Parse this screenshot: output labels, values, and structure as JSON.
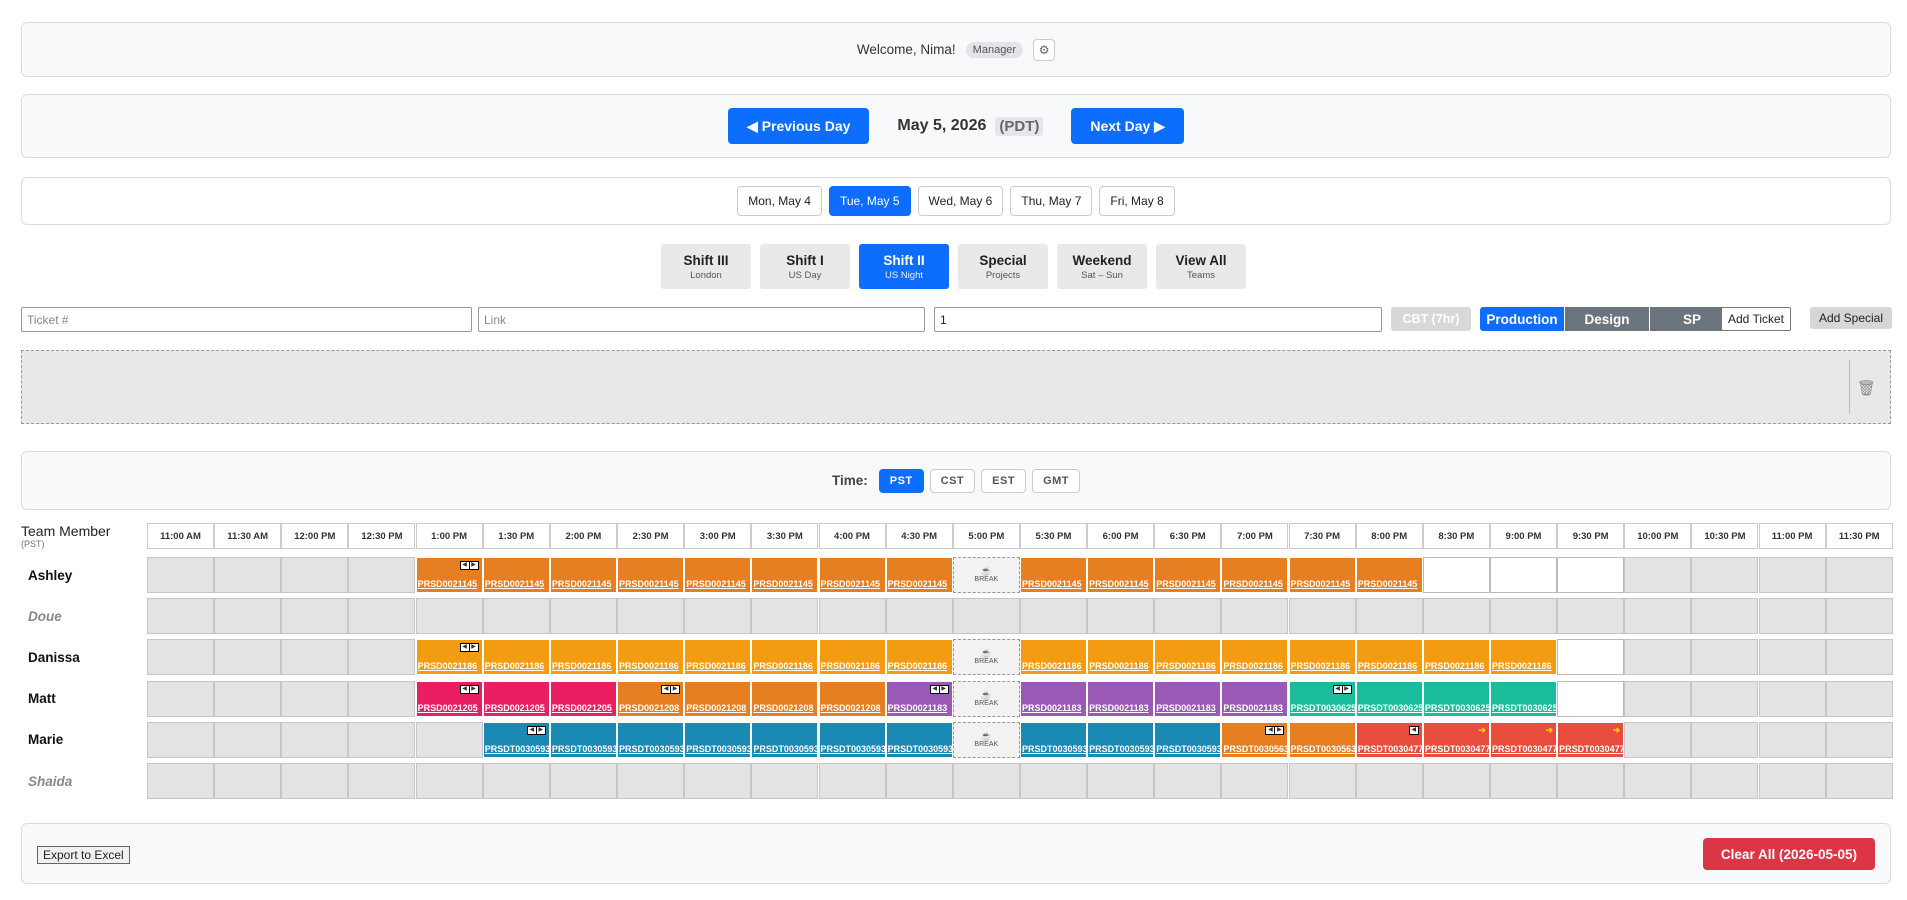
{
  "header": {
    "welcome": "Welcome, Nima!",
    "role": "Manager",
    "settings_icon": "gear-icon"
  },
  "nav": {
    "prev_label": "◀ Previous Day",
    "date": "May 5, 2026",
    "tz": "(PDT)",
    "next_label": "Next Day ▶"
  },
  "days": [
    {
      "label": "Mon, May 4",
      "active": false
    },
    {
      "label": "Tue, May 5",
      "active": true
    },
    {
      "label": "Wed, May 6",
      "active": false
    },
    {
      "label": "Thu, May 7",
      "active": false
    },
    {
      "label": "Fri, May 8",
      "active": false
    }
  ],
  "shifts": [
    {
      "title": "Shift III",
      "sub": "London",
      "active": false
    },
    {
      "title": "Shift I",
      "sub": "US Day",
      "active": false
    },
    {
      "title": "Shift II",
      "sub": "US Night",
      "active": true
    },
    {
      "title": "Special",
      "sub": "Projects",
      "active": false
    },
    {
      "title": "Weekend",
      "sub": "Sat – Sun",
      "active": false
    },
    {
      "title": "View All",
      "sub": "Teams",
      "active": false
    }
  ],
  "ticket_form": {
    "ticket_placeholder": "Ticket #",
    "link_placeholder": "Link",
    "hours_value": "1",
    "cbt_label": "CBT (7hr)",
    "categories": [
      {
        "label": "Production",
        "active": true
      },
      {
        "label": "Design",
        "active": false
      },
      {
        "label": "SP",
        "active": false
      }
    ],
    "add_ticket_label": "Add Ticket",
    "add_special_label": "Add Special"
  },
  "dropzone": {
    "trash_icon": "trash-icon"
  },
  "time": {
    "label": "Time:",
    "zones": [
      {
        "label": "PST",
        "active": true
      },
      {
        "label": "CST",
        "active": false
      },
      {
        "label": "EST",
        "active": false
      },
      {
        "label": "GMT",
        "active": false
      }
    ]
  },
  "grid": {
    "member_header": "Team Member",
    "member_tz": "(PST)",
    "time_slots": [
      "11:00 AM",
      "11:30 AM",
      "12:00 PM",
      "12:30 PM",
      "1:00 PM",
      "1:30 PM",
      "2:00 PM",
      "2:30 PM",
      "3:00 PM",
      "3:30 PM",
      "4:00 PM",
      "4:30 PM",
      "5:00 PM",
      "5:30 PM",
      "6:00 PM",
      "6:30 PM",
      "7:00 PM",
      "7:30 PM",
      "8:00 PM",
      "8:30 PM",
      "9:00 PM",
      "9:30 PM",
      "10:00 PM",
      "10:30 PM",
      "11:00 PM",
      "11:30 PM"
    ],
    "break_label": "BREAK",
    "ticket_colors": {
      "orange": "#e67e22",
      "amber": "#f39c12",
      "pink": "#e91e63",
      "purple": "#9b59b6",
      "teal": "#1abc9c",
      "blue": "#1a8ab4",
      "red": "#e74c3c"
    },
    "members": [
      {
        "name": "Ashley",
        "active": true,
        "cells": [
          {
            "t": "off"
          },
          {
            "t": "off"
          },
          {
            "t": "off"
          },
          {
            "t": "off"
          },
          {
            "t": "tk",
            "id": "PRSD0021145",
            "c": "orange",
            "ctrl": "lr"
          },
          {
            "t": "tk",
            "id": "PRSD0021145",
            "c": "orange"
          },
          {
            "t": "tk",
            "id": "PRSD0021145",
            "c": "orange"
          },
          {
            "t": "tk",
            "id": "PRSD0021145",
            "c": "orange"
          },
          {
            "t": "tk",
            "id": "PRSD0021145",
            "c": "orange"
          },
          {
            "t": "tk",
            "id": "PRSD0021145",
            "c": "orange"
          },
          {
            "t": "tk",
            "id": "PRSD0021145",
            "c": "orange"
          },
          {
            "t": "tk",
            "id": "PRSD0021145",
            "c": "orange"
          },
          {
            "t": "brk"
          },
          {
            "t": "tk",
            "id": "PRSD0021145",
            "c": "orange"
          },
          {
            "t": "tk",
            "id": "PRSD0021145",
            "c": "orange"
          },
          {
            "t": "tk",
            "id": "PRSD0021145",
            "c": "orange"
          },
          {
            "t": "tk",
            "id": "PRSD0021145",
            "c": "orange"
          },
          {
            "t": "tk",
            "id": "PRSD0021145",
            "c": "orange"
          },
          {
            "t": "tk",
            "id": "PRSD0021145",
            "c": "orange"
          },
          {
            "t": "empty"
          },
          {
            "t": "empty"
          },
          {
            "t": "empty"
          },
          {
            "t": "off"
          },
          {
            "t": "off"
          },
          {
            "t": "off"
          },
          {
            "t": "off"
          }
        ]
      },
      {
        "name": "Doue",
        "active": false,
        "cells": [
          {
            "t": "off"
          },
          {
            "t": "off"
          },
          {
            "t": "off"
          },
          {
            "t": "off"
          },
          {
            "t": "off"
          },
          {
            "t": "off"
          },
          {
            "t": "off"
          },
          {
            "t": "off"
          },
          {
            "t": "off"
          },
          {
            "t": "off"
          },
          {
            "t": "off"
          },
          {
            "t": "off"
          },
          {
            "t": "off"
          },
          {
            "t": "off"
          },
          {
            "t": "off"
          },
          {
            "t": "off"
          },
          {
            "t": "off"
          },
          {
            "t": "off"
          },
          {
            "t": "off"
          },
          {
            "t": "off"
          },
          {
            "t": "off"
          },
          {
            "t": "off"
          },
          {
            "t": "off"
          },
          {
            "t": "off"
          },
          {
            "t": "off"
          },
          {
            "t": "off"
          }
        ]
      },
      {
        "name": "Danissa",
        "active": true,
        "cells": [
          {
            "t": "off"
          },
          {
            "t": "off"
          },
          {
            "t": "off"
          },
          {
            "t": "off"
          },
          {
            "t": "tk",
            "id": "PRSD0021186",
            "c": "amber",
            "ctrl": "lr"
          },
          {
            "t": "tk",
            "id": "PRSD0021186",
            "c": "amber"
          },
          {
            "t": "tk",
            "id": "PRSD0021186",
            "c": "amber"
          },
          {
            "t": "tk",
            "id": "PRSD0021186",
            "c": "amber"
          },
          {
            "t": "tk",
            "id": "PRSD0021186",
            "c": "amber"
          },
          {
            "t": "tk",
            "id": "PRSD0021186",
            "c": "amber"
          },
          {
            "t": "tk",
            "id": "PRSD0021186",
            "c": "amber"
          },
          {
            "t": "tk",
            "id": "PRSD0021186",
            "c": "amber"
          },
          {
            "t": "brk"
          },
          {
            "t": "tk",
            "id": "PRSD0021186",
            "c": "amber"
          },
          {
            "t": "tk",
            "id": "PRSD0021186",
            "c": "amber"
          },
          {
            "t": "tk",
            "id": "PRSD0021186",
            "c": "amber"
          },
          {
            "t": "tk",
            "id": "PRSD0021186",
            "c": "amber"
          },
          {
            "t": "tk",
            "id": "PRSD0021186",
            "c": "amber"
          },
          {
            "t": "tk",
            "id": "PRSD0021186",
            "c": "amber"
          },
          {
            "t": "tk",
            "id": "PRSD0021186",
            "c": "amber"
          },
          {
            "t": "tk",
            "id": "PRSD0021186",
            "c": "amber"
          },
          {
            "t": "empty"
          },
          {
            "t": "off"
          },
          {
            "t": "off"
          },
          {
            "t": "off"
          },
          {
            "t": "off"
          }
        ]
      },
      {
        "name": "Matt",
        "active": true,
        "cells": [
          {
            "t": "off"
          },
          {
            "t": "off"
          },
          {
            "t": "off"
          },
          {
            "t": "off"
          },
          {
            "t": "tk",
            "id": "PRSD0021205",
            "c": "pink",
            "ctrl": "lr"
          },
          {
            "t": "tk",
            "id": "PRSD0021205",
            "c": "pink"
          },
          {
            "t": "tk",
            "id": "PRSD0021205",
            "c": "pink"
          },
          {
            "t": "tk",
            "id": "PRSD0021208",
            "c": "orange",
            "ctrl": "lr"
          },
          {
            "t": "tk",
            "id": "PRSD0021208",
            "c": "orange"
          },
          {
            "t": "tk",
            "id": "PRSD0021208",
            "c": "orange"
          },
          {
            "t": "tk",
            "id": "PRSD0021208",
            "c": "orange"
          },
          {
            "t": "tk",
            "id": "PRSD0021183",
            "c": "purple",
            "ctrl": "lr"
          },
          {
            "t": "brk"
          },
          {
            "t": "tk",
            "id": "PRSD0021183",
            "c": "purple"
          },
          {
            "t": "tk",
            "id": "PRSD0021183",
            "c": "purple"
          },
          {
            "t": "tk",
            "id": "PRSD0021183",
            "c": "purple"
          },
          {
            "t": "tk",
            "id": "PRSD0021183",
            "c": "purple"
          },
          {
            "t": "tk",
            "id": "PRSDT0030625",
            "c": "teal",
            "ctrl": "lr"
          },
          {
            "t": "tk",
            "id": "PRSDT0030625",
            "c": "teal"
          },
          {
            "t": "tk",
            "id": "PRSDT0030625",
            "c": "teal"
          },
          {
            "t": "tk",
            "id": "PRSDT0030625",
            "c": "teal"
          },
          {
            "t": "empty"
          },
          {
            "t": "off"
          },
          {
            "t": "off"
          },
          {
            "t": "off"
          },
          {
            "t": "off"
          }
        ]
      },
      {
        "name": "Marie",
        "active": true,
        "cells": [
          {
            "t": "off"
          },
          {
            "t": "off"
          },
          {
            "t": "off"
          },
          {
            "t": "off"
          },
          {
            "t": "off"
          },
          {
            "t": "tk",
            "id": "PRSDT0030593",
            "c": "blue",
            "ctrl": "lr"
          },
          {
            "t": "tk",
            "id": "PRSDT0030593",
            "c": "blue"
          },
          {
            "t": "tk",
            "id": "PRSDT0030593",
            "c": "blue"
          },
          {
            "t": "tk",
            "id": "PRSDT0030593",
            "c": "blue"
          },
          {
            "t": "tk",
            "id": "PRSDT0030593",
            "c": "blue"
          },
          {
            "t": "tk",
            "id": "PRSDT0030593",
            "c": "blue"
          },
          {
            "t": "tk",
            "id": "PRSDT0030593",
            "c": "blue"
          },
          {
            "t": "brk"
          },
          {
            "t": "tk",
            "id": "PRSDT0030593",
            "c": "blue"
          },
          {
            "t": "tk",
            "id": "PRSDT0030593",
            "c": "blue"
          },
          {
            "t": "tk",
            "id": "PRSDT0030593",
            "c": "blue"
          },
          {
            "t": "tk",
            "id": "PRSDT0030563",
            "c": "orange",
            "ctrl": "lr"
          },
          {
            "t": "tk",
            "id": "PRSDT0030563",
            "c": "orange"
          },
          {
            "t": "tk",
            "id": "PRSDT0030477",
            "c": "red",
            "ctrl": "l"
          },
          {
            "t": "tk",
            "id": "PRSDT0030477",
            "c": "red",
            "flag": true
          },
          {
            "t": "tk",
            "id": "PRSDT0030477",
            "c": "red",
            "flag": true
          },
          {
            "t": "tk",
            "id": "PRSDT0030477",
            "c": "red",
            "flag": true
          },
          {
            "t": "off"
          },
          {
            "t": "off"
          },
          {
            "t": "off"
          },
          {
            "t": "off"
          }
        ]
      },
      {
        "name": "Shaida",
        "active": false,
        "cells": [
          {
            "t": "off"
          },
          {
            "t": "off"
          },
          {
            "t": "off"
          },
          {
            "t": "off"
          },
          {
            "t": "off"
          },
          {
            "t": "off"
          },
          {
            "t": "off"
          },
          {
            "t": "off"
          },
          {
            "t": "off"
          },
          {
            "t": "off"
          },
          {
            "t": "off"
          },
          {
            "t": "off"
          },
          {
            "t": "off"
          },
          {
            "t": "off"
          },
          {
            "t": "off"
          },
          {
            "t": "off"
          },
          {
            "t": "off"
          },
          {
            "t": "off"
          },
          {
            "t": "off"
          },
          {
            "t": "off"
          },
          {
            "t": "off"
          },
          {
            "t": "off"
          },
          {
            "t": "off"
          },
          {
            "t": "off"
          },
          {
            "t": "off"
          },
          {
            "t": "off"
          }
        ]
      }
    ]
  },
  "footer": {
    "export_label": "Export to Excel",
    "clear_label": "Clear All (2026-05-05)"
  }
}
